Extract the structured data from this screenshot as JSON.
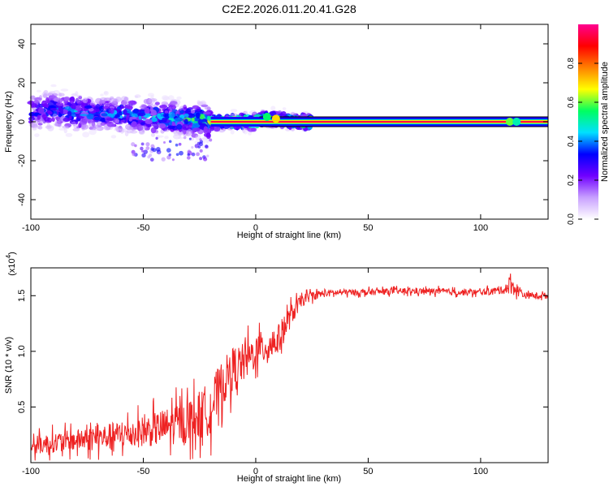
{
  "title": "C2E2.2026.011.20.41.G28",
  "chart_data": [
    {
      "type": "heatmap",
      "title": "C2E2.2026.011.20.41.G28",
      "xlabel": "Height of straight line (km)",
      "ylabel": "Frequency (Hz)",
      "xlim": [
        -100,
        130
      ],
      "ylim": [
        -50,
        50
      ],
      "xticks": [
        -100,
        -50,
        0,
        50,
        100
      ],
      "yticks": [
        -40,
        -20,
        0,
        20,
        40
      ],
      "xtick_labels": [
        "-100",
        "-50",
        "0",
        "50",
        "100"
      ],
      "ytick_labels": [
        "-40",
        "-20",
        "0",
        "20",
        "40"
      ],
      "colorbar": {
        "label": "Normalized spectral amplitude",
        "range": [
          0,
          1
        ],
        "ticks": [
          0.0,
          0.2,
          0.4,
          0.6,
          0.8
        ],
        "tick_labels": [
          "0.0",
          "0.2",
          "0.4",
          "0.6",
          "0.8"
        ],
        "colormap": [
          "#ffffff",
          "#c8a0ff",
          "#7000ff",
          "#0000ff",
          "#00e0ff",
          "#00ff60",
          "#ffff00",
          "#ff8000",
          "#ff0000",
          "#ff0090"
        ]
      },
      "ridge": {
        "description": "Energy concentrated near 0 Hz; broad scatter (≈ -10 to +12 Hz) for heights below about -20 km, narrow high-amplitude line at ~0 Hz above that",
        "points": [
          {
            "x": -100,
            "y": 5,
            "amplitude": 0.35
          },
          {
            "x": -90,
            "y": 6,
            "amplitude": 0.4
          },
          {
            "x": -80,
            "y": 5,
            "amplitude": 0.45
          },
          {
            "x": -70,
            "y": 4,
            "amplitude": 0.4
          },
          {
            "x": -60,
            "y": 4,
            "amplitude": 0.45
          },
          {
            "x": -50,
            "y": 3,
            "amplitude": 0.45
          },
          {
            "x": -40,
            "y": 2,
            "amplitude": 0.5
          },
          {
            "x": -30,
            "y": 1,
            "amplitude": 0.55
          },
          {
            "x": -20,
            "y": 0,
            "amplitude": 0.75
          },
          {
            "x": -10,
            "y": 0,
            "amplitude": 0.9
          },
          {
            "x": 0,
            "y": 0,
            "amplitude": 0.95
          },
          {
            "x": 5,
            "y": 2,
            "amplitude": 0.6
          },
          {
            "x": 10,
            "y": 1,
            "amplitude": 0.8
          },
          {
            "x": 20,
            "y": 0,
            "amplitude": 1.0
          },
          {
            "x": 50,
            "y": 0,
            "amplitude": 1.0
          },
          {
            "x": 80,
            "y": 0,
            "amplitude": 1.0
          },
          {
            "x": 113,
            "y": 0,
            "amplitude": 0.7
          },
          {
            "x": 130,
            "y": 0,
            "amplitude": 1.0
          }
        ]
      }
    },
    {
      "type": "line",
      "xlabel": "Height of straight line (km)",
      "ylabel": "SNR (10 * v/v)",
      "y_multiplier": "(x10",
      "y_multiplier_exp": "4",
      "y_multiplier_close": ")",
      "xlim": [
        -100,
        130
      ],
      "ylim": [
        0,
        1.75
      ],
      "xticks": [
        -100,
        -50,
        0,
        50,
        100
      ],
      "yticks": [
        0.5,
        1.0,
        1.5
      ],
      "xtick_labels": [
        "-100",
        "-50",
        "0",
        "50",
        "100"
      ],
      "ytick_labels": [
        "0.5",
        "1.0",
        "1.5"
      ],
      "color": "#ee2222",
      "series": [
        {
          "name": "SNR",
          "x": [
            -100,
            -90,
            -80,
            -70,
            -60,
            -50,
            -40,
            -30,
            -25,
            -20,
            -15,
            -10,
            -5,
            0,
            5,
            10,
            15,
            20,
            25,
            30,
            40,
            50,
            60,
            70,
            80,
            90,
            100,
            110,
            113,
            120,
            130
          ],
          "y": [
            0.15,
            0.18,
            0.2,
            0.22,
            0.25,
            0.28,
            0.32,
            0.38,
            0.42,
            0.5,
            0.7,
            0.85,
            0.9,
            1.0,
            1.05,
            1.1,
            1.3,
            1.45,
            1.5,
            1.52,
            1.53,
            1.53,
            1.54,
            1.54,
            1.54,
            1.53,
            1.53,
            1.55,
            1.6,
            1.5,
            1.5
          ],
          "spread": [
            0.12,
            0.13,
            0.14,
            0.16,
            0.18,
            0.2,
            0.24,
            0.28,
            0.32,
            0.35,
            0.3,
            0.28,
            0.25,
            0.22,
            0.22,
            0.2,
            0.15,
            0.08,
            0.06,
            0.05,
            0.04,
            0.04,
            0.04,
            0.04,
            0.04,
            0.04,
            0.04,
            0.05,
            0.12,
            0.04,
            0.04
          ]
        }
      ]
    }
  ]
}
